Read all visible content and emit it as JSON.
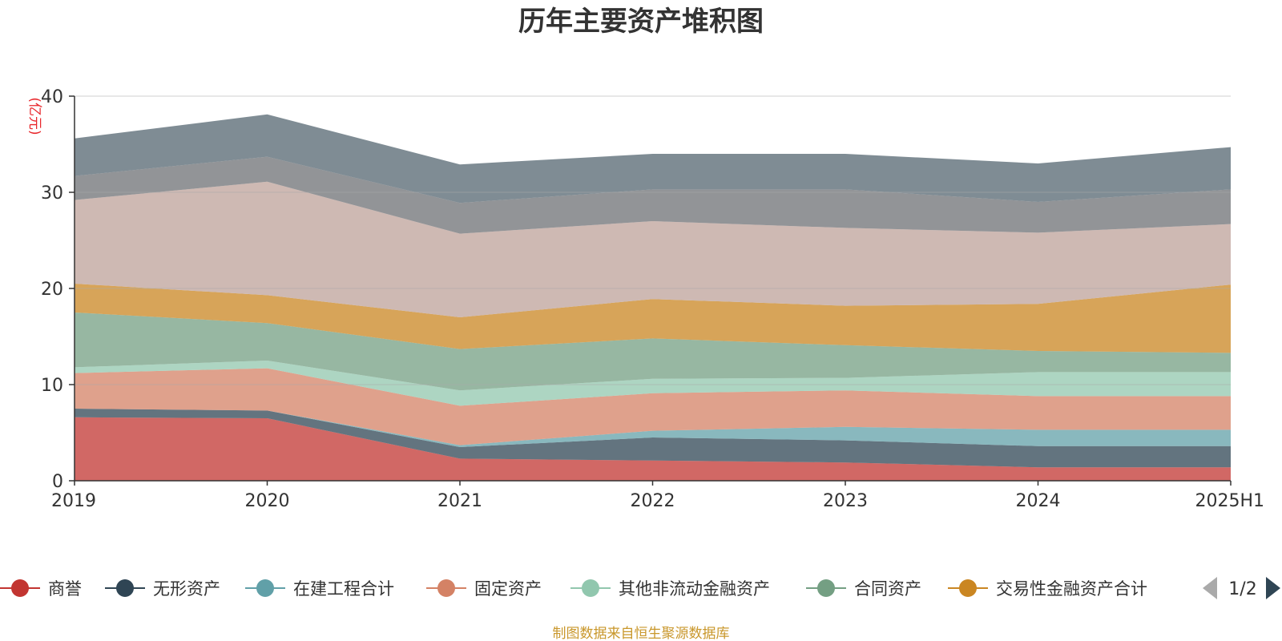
{
  "chart_data": {
    "type": "area",
    "stacked": true,
    "title": "历年主要资产堆积图",
    "ylabel": "(亿元)",
    "ylim": [
      0,
      40
    ],
    "yticks": [
      "0",
      "10",
      "20",
      "30",
      "40"
    ],
    "grid": true,
    "categories": [
      "2019",
      "2020",
      "2021",
      "2022",
      "2023",
      "2024",
      "2025H1"
    ],
    "series": [
      {
        "name": "商誉",
        "color": "#c23531",
        "values": [
          6.6,
          6.5,
          2.3,
          2.1,
          1.9,
          1.4,
          1.4
        ]
      },
      {
        "name": "无形资产",
        "color": "#2f4554",
        "values": [
          0.9,
          0.8,
          1.2,
          2.4,
          2.3,
          2.2,
          2.2
        ]
      },
      {
        "name": "在建工程合计",
        "color": "#61a0a8",
        "values": [
          0.0,
          0.0,
          0.2,
          0.7,
          1.4,
          1.7,
          1.7
        ]
      },
      {
        "name": "固定资产",
        "color": "#d48265",
        "values": [
          3.7,
          4.4,
          4.1,
          3.9,
          3.8,
          3.5,
          3.5
        ]
      },
      {
        "name": "其他非流动金融资产",
        "color": "#91c7ae",
        "values": [
          0.6,
          0.8,
          1.6,
          1.5,
          1.3,
          2.5,
          2.5
        ]
      },
      {
        "name": "合同资产",
        "color": "#749f83",
        "values": [
          5.7,
          3.9,
          4.3,
          4.2,
          3.4,
          2.2,
          2.0
        ]
      },
      {
        "name": "交易性金融资产合计",
        "color": "#ca8622",
        "values": [
          3.0,
          2.9,
          3.3,
          4.1,
          4.1,
          4.9,
          7.1
        ]
      },
      {
        "name": "",
        "color": "#bda29a",
        "values": [
          8.7,
          11.8,
          8.7,
          8.1,
          8.1,
          7.4,
          6.3
        ]
      },
      {
        "name": "",
        "color": "#6e7074",
        "values": [
          2.5,
          2.6,
          3.2,
          3.3,
          4.0,
          3.2,
          3.6
        ]
      },
      {
        "name": "",
        "color": "#546570",
        "values": [
          3.9,
          4.4,
          4.0,
          3.7,
          3.7,
          4.0,
          4.4
        ]
      }
    ],
    "legend": {
      "placement": "bottom",
      "visible_items": [
        "商誉",
        "无形资产",
        "在建工程合计",
        "固定资产",
        "其他非流动金融资产",
        "合同资产",
        "交易性金融资产合计"
      ],
      "page": "1/2"
    },
    "source": "制图数据来自恒生聚源数据库"
  }
}
